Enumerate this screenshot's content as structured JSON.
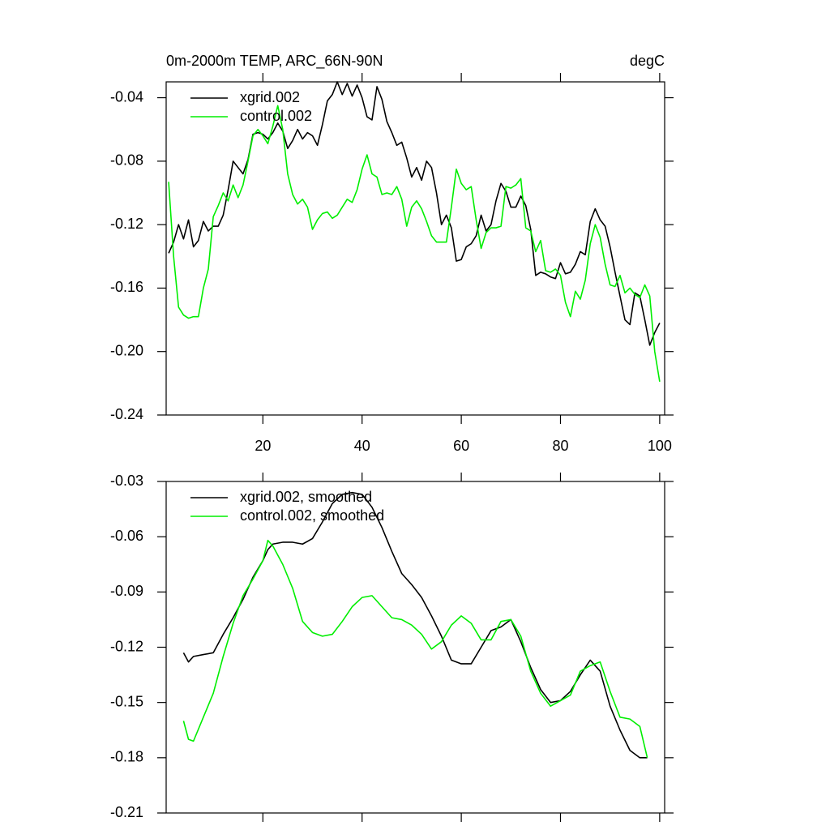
{
  "chart_data": [
    {
      "type": "line",
      "title": "0m-2000m TEMP, ARC_66N-90N",
      "units": "degC",
      "x": [
        1,
        2,
        3,
        4,
        5,
        6,
        7,
        8,
        9,
        10,
        11,
        12,
        13,
        14,
        15,
        16,
        17,
        18,
        19,
        20,
        21,
        22,
        23,
        24,
        25,
        26,
        27,
        28,
        29,
        30,
        31,
        32,
        33,
        34,
        35,
        36,
        37,
        38,
        39,
        40,
        41,
        42,
        43,
        44,
        45,
        46,
        47,
        48,
        49,
        50,
        51,
        52,
        53,
        54,
        55,
        56,
        57,
        58,
        59,
        60,
        61,
        62,
        63,
        64,
        65,
        66,
        67,
        68,
        69,
        70,
        71,
        72,
        73,
        74,
        75,
        76,
        77,
        78,
        79,
        80,
        81,
        82,
        83,
        84,
        85,
        86,
        87,
        88,
        89,
        90,
        91,
        92,
        93,
        94,
        95,
        96,
        97,
        98,
        99,
        100
      ],
      "series": [
        {
          "name": "xgrid.002",
          "color": "#000000",
          "values": [
            -0.138,
            -0.131,
            -0.12,
            -0.129,
            -0.117,
            -0.134,
            -0.13,
            -0.118,
            -0.124,
            -0.121,
            -0.121,
            -0.114,
            -0.098,
            -0.08,
            -0.084,
            -0.088,
            -0.079,
            -0.063,
            -0.062,
            -0.063,
            -0.066,
            -0.062,
            -0.056,
            -0.061,
            -0.072,
            -0.067,
            -0.06,
            -0.066,
            -0.062,
            -0.064,
            -0.07,
            -0.057,
            -0.042,
            -0.038,
            -0.03,
            -0.038,
            -0.031,
            -0.039,
            -0.032,
            -0.04,
            -0.052,
            -0.054,
            -0.033,
            -0.041,
            -0.055,
            -0.062,
            -0.07,
            -0.068,
            -0.078,
            -0.09,
            -0.084,
            -0.092,
            -0.08,
            -0.084,
            -0.1,
            -0.12,
            -0.114,
            -0.122,
            -0.143,
            -0.142,
            -0.134,
            -0.132,
            -0.127,
            -0.114,
            -0.124,
            -0.12,
            -0.105,
            -0.094,
            -0.099,
            -0.109,
            -0.109,
            -0.102,
            -0.108,
            -0.123,
            -0.152,
            -0.15,
            -0.151,
            -0.153,
            -0.154,
            -0.144,
            -0.151,
            -0.15,
            -0.145,
            -0.137,
            -0.139,
            -0.118,
            -0.11,
            -0.117,
            -0.121,
            -0.134,
            -0.15,
            -0.165,
            -0.18,
            -0.183,
            -0.163,
            -0.165,
            -0.18,
            -0.196,
            -0.188,
            -0.182
          ]
        },
        {
          "name": "control.002",
          "color": "#00ee00",
          "values": [
            -0.093,
            -0.14,
            -0.172,
            -0.177,
            -0.179,
            -0.178,
            -0.178,
            -0.16,
            -0.148,
            -0.115,
            -0.108,
            -0.1,
            -0.105,
            -0.095,
            -0.103,
            -0.095,
            -0.08,
            -0.064,
            -0.06,
            -0.064,
            -0.069,
            -0.058,
            -0.045,
            -0.06,
            -0.088,
            -0.101,
            -0.107,
            -0.104,
            -0.109,
            -0.123,
            -0.117,
            -0.113,
            -0.112,
            -0.116,
            -0.114,
            -0.109,
            -0.104,
            -0.106,
            -0.098,
            -0.085,
            -0.076,
            -0.088,
            -0.09,
            -0.101,
            -0.1,
            -0.101,
            -0.096,
            -0.104,
            -0.121,
            -0.109,
            -0.105,
            -0.11,
            -0.118,
            -0.127,
            -0.131,
            -0.131,
            -0.131,
            -0.109,
            -0.085,
            -0.094,
            -0.098,
            -0.096,
            -0.117,
            -0.135,
            -0.125,
            -0.122,
            -0.122,
            -0.121,
            -0.096,
            -0.097,
            -0.095,
            -0.091,
            -0.122,
            -0.124,
            -0.137,
            -0.13,
            -0.149,
            -0.15,
            -0.148,
            -0.152,
            -0.169,
            -0.178,
            -0.162,
            -0.167,
            -0.155,
            -0.132,
            -0.12,
            -0.128,
            -0.145,
            -0.158,
            -0.159,
            -0.152,
            -0.163,
            -0.16,
            -0.164,
            -0.166,
            -0.158,
            -0.165,
            -0.2,
            -0.219
          ]
        }
      ],
      "xlim": [
        0.5,
        101
      ],
      "xticks": [
        20,
        40,
        60,
        80,
        100
      ],
      "ylim": [
        -0.24,
        -0.03
      ],
      "yticks": [
        -0.24,
        {
          "value": -0.2,
          "label": "-0.20"
        },
        -0.16,
        -0.12,
        -0.08,
        -0.04
      ],
      "xtick_labels": true
    },
    {
      "type": "line",
      "x": [
        4,
        5,
        6,
        8,
        10,
        12,
        14,
        16,
        18,
        20,
        21,
        22,
        24,
        26,
        28,
        30,
        32,
        34,
        36,
        38,
        40,
        42,
        44,
        46,
        48,
        50,
        52,
        54,
        56,
        58,
        60,
        62,
        64,
        66,
        68,
        70,
        72,
        74,
        76,
        78,
        80,
        82,
        84,
        86,
        88,
        90,
        92,
        94,
        96,
        97.5
      ],
      "series": [
        {
          "name": "xgrid.002, smoothed",
          "color": "#000000",
          "values": [
            -0.123,
            -0.128,
            -0.125,
            -0.124,
            -0.123,
            -0.113,
            -0.104,
            -0.094,
            -0.082,
            -0.073,
            -0.067,
            -0.064,
            -0.063,
            -0.063,
            -0.064,
            -0.061,
            -0.052,
            -0.042,
            -0.037,
            -0.036,
            -0.037,
            -0.044,
            -0.055,
            -0.068,
            -0.08,
            -0.086,
            -0.093,
            -0.103,
            -0.114,
            -0.127,
            -0.129,
            -0.129,
            -0.12,
            -0.111,
            -0.109,
            -0.105,
            -0.117,
            -0.131,
            -0.143,
            -0.15,
            -0.149,
            -0.144,
            -0.135,
            -0.127,
            -0.133,
            -0.152,
            -0.165,
            -0.176,
            -0.18,
            -0.18
          ]
        },
        {
          "name": "control.002, smoothed",
          "color": "#00ee00",
          "values": [
            -0.16,
            -0.17,
            -0.171,
            -0.158,
            -0.145,
            -0.125,
            -0.107,
            -0.092,
            -0.083,
            -0.073,
            -0.062,
            -0.065,
            -0.075,
            -0.088,
            -0.106,
            -0.112,
            -0.114,
            -0.113,
            -0.106,
            -0.098,
            -0.093,
            -0.092,
            -0.098,
            -0.104,
            -0.105,
            -0.108,
            -0.113,
            -0.121,
            -0.117,
            -0.108,
            -0.103,
            -0.107,
            -0.116,
            -0.116,
            -0.106,
            -0.105,
            -0.114,
            -0.133,
            -0.145,
            -0.152,
            -0.149,
            -0.146,
            -0.133,
            -0.13,
            -0.128,
            -0.144,
            -0.158,
            -0.159,
            -0.163,
            -0.18
          ]
        }
      ],
      "xlim": [
        0.5,
        101
      ],
      "xticks": [
        20,
        40,
        60,
        80,
        100
      ],
      "ylim": [
        -0.21,
        -0.03
      ],
      "yticks": [
        -0.21,
        -0.18,
        -0.15,
        -0.12,
        -0.09,
        -0.06,
        -0.03
      ],
      "xtick_labels": false
    }
  ]
}
